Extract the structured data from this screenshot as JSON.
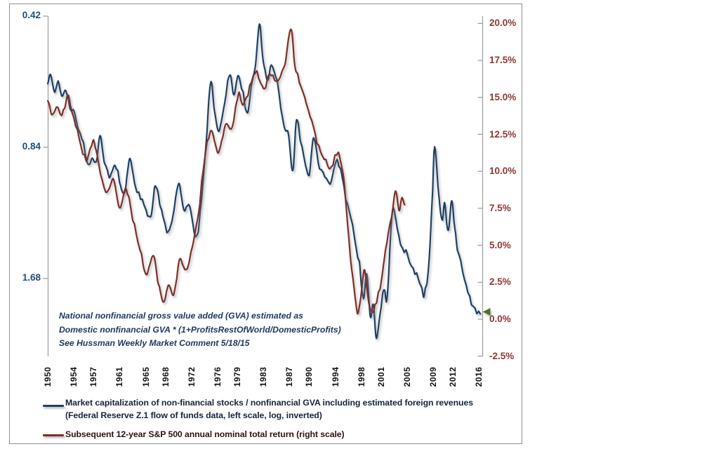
{
  "figure": {
    "background": "#ffffff",
    "border_color": "#8f8f8f",
    "axis_color": "#9c9c9c"
  },
  "annotation": {
    "line1": "National nonfinancial gross value added (GVA) estimated as",
    "line2": "Domestic nonfinancial GVA * (1+ProfitsRestOfWorld/DomesticProfits)",
    "line3": "See Hussman Weekly Market Comment 5/18/15"
  },
  "legend": {
    "position": "bottom-left",
    "series1": {
      "label": "Market capitalization of non-financial stocks / nonfinancial GVA including estimated foreign revenues",
      "label2": "(Federal Reserve Z.1 flow of funds data, left scale, log, inverted)",
      "color": "#1e4066"
    },
    "series2": {
      "label": "Subsequent 12-year S&P 500 annual nominal total return (right scale)",
      "color": "#7e2d26"
    }
  },
  "chart_data": {
    "type": "line",
    "title": "",
    "grid": false,
    "x_axis": {
      "range": [
        1950,
        2016.6
      ],
      "tick_years": [
        "1950",
        "1954",
        "1957",
        "1961",
        "1965",
        "1968",
        "1972",
        "1976",
        "1979",
        "1983",
        "1987",
        "1990",
        "1994",
        "1998",
        "2001",
        "2005",
        "2009",
        "2012",
        "2016"
      ]
    },
    "left_axis": {
      "scale": "log2-inverted",
      "tick_color": "#1d4e79",
      "ticks": [
        {
          "label": "0.42",
          "value": 0.42
        },
        {
          "label": "0.84",
          "value": 0.84
        },
        {
          "label": "1.68",
          "value": 1.68
        }
      ]
    },
    "right_axis": {
      "scale": "linear",
      "range": [
        -2.5,
        20
      ],
      "tick_color": "#903634",
      "ticks": [
        {
          "label": "20.0%",
          "value": 20.0
        },
        {
          "label": "17.5%",
          "value": 17.5
        },
        {
          "label": "15.0%",
          "value": 15.0
        },
        {
          "label": "12.5%",
          "value": 12.5
        },
        {
          "label": "10.0%",
          "value": 10.0
        },
        {
          "label": "7.5%",
          "value": 7.5
        },
        {
          "label": "5.0%",
          "value": 5.0
        },
        {
          "label": "2.5%",
          "value": 2.5
        },
        {
          "label": "0.0%",
          "value": 0.0
        },
        {
          "label": "-2.5%",
          "value": -2.5
        }
      ]
    },
    "series": [
      {
        "name": "Market capitalization of non-financial stocks / nonfinancial GVA including estimated foreign revenues",
        "axis": "left",
        "color": "#1e4066",
        "points": [
          [
            1950.0,
            0.6
          ],
          [
            1950.4,
            0.57
          ],
          [
            1951.0,
            0.62
          ],
          [
            1951.6,
            0.6
          ],
          [
            1952.2,
            0.64
          ],
          [
            1952.8,
            0.62
          ],
          [
            1953.4,
            0.68
          ],
          [
            1954.0,
            0.7
          ],
          [
            1954.6,
            0.76
          ],
          [
            1955.3,
            0.81
          ],
          [
            1956.2,
            0.92
          ],
          [
            1956.8,
            0.88
          ],
          [
            1957.4,
            0.91
          ],
          [
            1958.0,
            0.8
          ],
          [
            1958.8,
            0.92
          ],
          [
            1959.5,
            0.98
          ],
          [
            1960.3,
            0.92
          ],
          [
            1961.0,
            1.0
          ],
          [
            1961.8,
            1.08
          ],
          [
            1962.5,
            0.89
          ],
          [
            1963.3,
            1.02
          ],
          [
            1964.2,
            1.1
          ],
          [
            1965.0,
            1.16
          ],
          [
            1965.8,
            1.21
          ],
          [
            1966.5,
            1.03
          ],
          [
            1967.3,
            1.16
          ],
          [
            1968.5,
            1.32
          ],
          [
            1969.3,
            1.17
          ],
          [
            1970.1,
            1.02
          ],
          [
            1970.9,
            1.17
          ],
          [
            1971.6,
            1.13
          ],
          [
            1972.7,
            1.36
          ],
          [
            1973.4,
            1.16
          ],
          [
            1974.1,
            0.88
          ],
          [
            1974.9,
            0.6
          ],
          [
            1975.5,
            0.69
          ],
          [
            1976.2,
            0.76
          ],
          [
            1977.1,
            0.66
          ],
          [
            1977.9,
            0.57
          ],
          [
            1978.5,
            0.63
          ],
          [
            1979.2,
            0.58
          ],
          [
            1979.9,
            0.63
          ],
          [
            1980.5,
            0.7
          ],
          [
            1981.1,
            0.62
          ],
          [
            1981.8,
            0.54
          ],
          [
            1982.4,
            0.44
          ],
          [
            1983.0,
            0.54
          ],
          [
            1983.7,
            0.59
          ],
          [
            1984.3,
            0.54
          ],
          [
            1985.2,
            0.61
          ],
          [
            1986.1,
            0.74
          ],
          [
            1986.9,
            0.8
          ],
          [
            1987.5,
            0.96
          ],
          [
            1988.0,
            0.74
          ],
          [
            1988.8,
            0.82
          ],
          [
            1989.6,
            0.93
          ],
          [
            1990.1,
            0.95
          ],
          [
            1990.7,
            0.8
          ],
          [
            1991.5,
            0.93
          ],
          [
            1992.3,
            0.98
          ],
          [
            1993.3,
            1.01
          ],
          [
            1994.2,
            0.9
          ],
          [
            1994.9,
            0.96
          ],
          [
            1995.6,
            1.1
          ],
          [
            1996.4,
            1.22
          ],
          [
            1997.1,
            1.42
          ],
          [
            1997.7,
            1.56
          ],
          [
            1998.3,
            1.88
          ],
          [
            1998.8,
            1.62
          ],
          [
            1999.4,
            2.06
          ],
          [
            1999.8,
            1.95
          ],
          [
            2000.3,
            2.3
          ],
          [
            2000.9,
            2.02
          ],
          [
            2001.5,
            1.76
          ],
          [
            2001.9,
            1.86
          ],
          [
            2002.7,
            1.18
          ],
          [
            2003.2,
            1.22
          ],
          [
            2004.0,
            1.42
          ],
          [
            2005.0,
            1.48
          ],
          [
            2006.0,
            1.6
          ],
          [
            2007.0,
            1.72
          ],
          [
            2007.6,
            1.82
          ],
          [
            2008.3,
            1.56
          ],
          [
            2008.9,
            1.04
          ],
          [
            2009.2,
            0.84
          ],
          [
            2009.9,
            1.12
          ],
          [
            2010.4,
            1.25
          ],
          [
            2010.7,
            1.14
          ],
          [
            2011.3,
            1.3
          ],
          [
            2011.8,
            1.12
          ],
          [
            2012.5,
            1.38
          ],
          [
            2013.3,
            1.58
          ],
          [
            2014.2,
            1.8
          ],
          [
            2015.1,
            1.94
          ],
          [
            2016.2,
            2.02
          ]
        ]
      },
      {
        "name": "Subsequent 12-year S&P 500 annual nominal total return",
        "axis": "right",
        "color": "#7e2d26",
        "points": [
          [
            1950.0,
            14.6
          ],
          [
            1950.7,
            13.8
          ],
          [
            1951.5,
            14.3
          ],
          [
            1952.3,
            13.9
          ],
          [
            1953.1,
            15.0
          ],
          [
            1954.0,
            13.6
          ],
          [
            1955.0,
            11.9
          ],
          [
            1956.0,
            10.8
          ],
          [
            1957.0,
            12.0
          ],
          [
            1958.0,
            10.1
          ],
          [
            1959.0,
            8.7
          ],
          [
            1960.0,
            9.4
          ],
          [
            1961.0,
            7.7
          ],
          [
            1962.0,
            8.8
          ],
          [
            1963.0,
            6.8
          ],
          [
            1964.0,
            5.0
          ],
          [
            1965.0,
            3.1
          ],
          [
            1966.2,
            4.1
          ],
          [
            1967.0,
            2.2
          ],
          [
            1967.8,
            1.3
          ],
          [
            1968.6,
            2.3
          ],
          [
            1969.3,
            1.6
          ],
          [
            1970.2,
            4.2
          ],
          [
            1971.0,
            3.2
          ],
          [
            1972.0,
            4.6
          ],
          [
            1973.0,
            7.0
          ],
          [
            1974.0,
            10.8
          ],
          [
            1975.0,
            12.8
          ],
          [
            1976.2,
            11.3
          ],
          [
            1977.2,
            13.2
          ],
          [
            1978.2,
            13.0
          ],
          [
            1979.2,
            15.2
          ],
          [
            1980.0,
            14.5
          ],
          [
            1981.0,
            15.8
          ],
          [
            1982.0,
            16.6
          ],
          [
            1983.0,
            15.6
          ],
          [
            1984.0,
            16.5
          ],
          [
            1985.0,
            16.1
          ],
          [
            1986.2,
            17.0
          ],
          [
            1987.2,
            19.6
          ],
          [
            1987.8,
            17.3
          ],
          [
            1988.5,
            16.1
          ],
          [
            1989.4,
            14.8
          ],
          [
            1990.2,
            13.6
          ],
          [
            1991.2,
            12.0
          ],
          [
            1992.2,
            11.0
          ],
          [
            1993.2,
            10.3
          ],
          [
            1994.4,
            11.2
          ],
          [
            1995.2,
            9.8
          ],
          [
            1996.0,
            5.9
          ],
          [
            1996.7,
            2.6
          ],
          [
            1997.4,
            0.5
          ],
          [
            1998.1,
            2.2
          ],
          [
            1998.5,
            3.2
          ],
          [
            1999.2,
            0.8
          ],
          [
            1999.8,
            0.5
          ],
          [
            2000.5,
            1.6
          ],
          [
            2001.2,
            3.0
          ],
          [
            2002.0,
            5.6
          ],
          [
            2002.6,
            6.8
          ],
          [
            2003.2,
            8.6
          ],
          [
            2003.8,
            7.4
          ],
          [
            2004.2,
            8.2
          ],
          [
            2004.6,
            7.7
          ]
        ]
      }
    ],
    "arrow": {
      "color": "#4e7320",
      "points_at_value_pct": 0.5
    }
  }
}
